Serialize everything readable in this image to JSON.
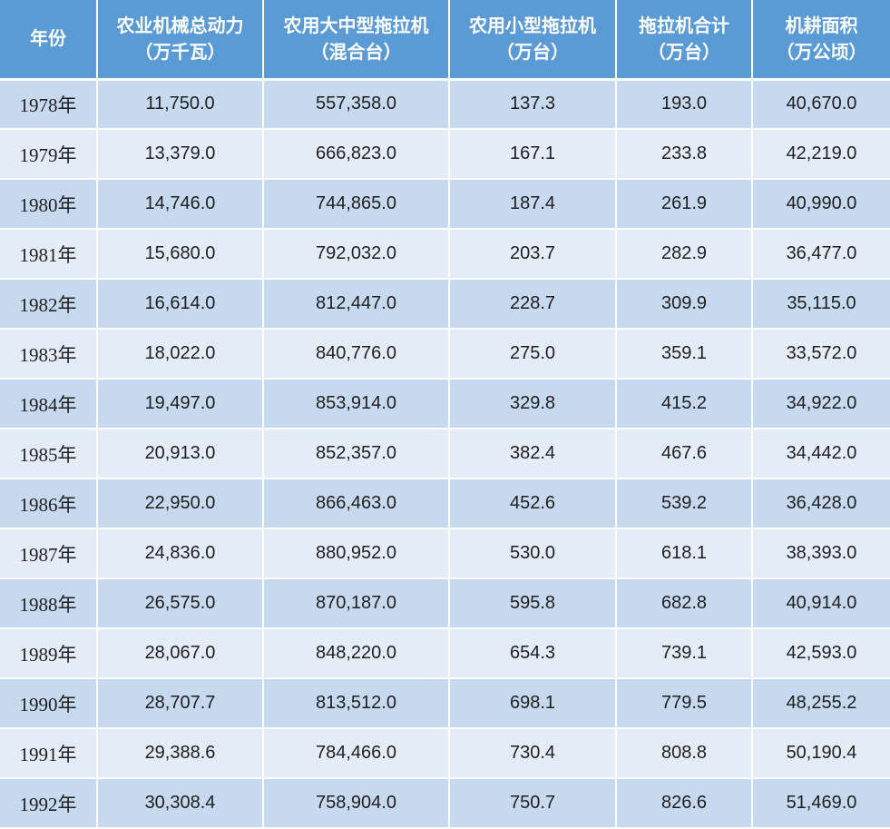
{
  "table": {
    "headers": [
      {
        "line1": "年份",
        "line2": ""
      },
      {
        "line1": "农业机械总动力",
        "line2": "（万千瓦）"
      },
      {
        "line1": "农用大中型拖拉机",
        "line2": "（混合台）"
      },
      {
        "line1": "农用小型拖拉机",
        "line2": "（万台）"
      },
      {
        "line1": "拖拉机合计",
        "line2": "（万台）"
      },
      {
        "line1": "机耕面积",
        "line2": "（万公顷）"
      }
    ],
    "rows": [
      [
        "1978年",
        "11,750.0",
        "557,358.0",
        "137.3",
        "193.0",
        "40,670.0"
      ],
      [
        "1979年",
        "13,379.0",
        "666,823.0",
        "167.1",
        "233.8",
        "42,219.0"
      ],
      [
        "1980年",
        "14,746.0",
        "744,865.0",
        "187.4",
        "261.9",
        "40,990.0"
      ],
      [
        "1981年",
        "15,680.0",
        "792,032.0",
        "203.7",
        "282.9",
        "36,477.0"
      ],
      [
        "1982年",
        "16,614.0",
        "812,447.0",
        "228.7",
        "309.9",
        "35,115.0"
      ],
      [
        "1983年",
        "18,022.0",
        "840,776.0",
        "275.0",
        "359.1",
        "33,572.0"
      ],
      [
        "1984年",
        "19,497.0",
        "853,914.0",
        "329.8",
        "415.2",
        "34,922.0"
      ],
      [
        "1985年",
        "20,913.0",
        "852,357.0",
        "382.4",
        "467.6",
        "34,442.0"
      ],
      [
        "1986年",
        "22,950.0",
        "866,463.0",
        "452.6",
        "539.2",
        "36,428.0"
      ],
      [
        "1987年",
        "24,836.0",
        "880,952.0",
        "530.0",
        "618.1",
        "38,393.0"
      ],
      [
        "1988年",
        "26,575.0",
        "870,187.0",
        "595.8",
        "682.8",
        "40,914.0"
      ],
      [
        "1989年",
        "28,067.0",
        "848,220.0",
        "654.3",
        "739.1",
        "42,593.0"
      ],
      [
        "1990年",
        "28,707.7",
        "813,512.0",
        "698.1",
        "779.5",
        "48,255.2"
      ],
      [
        "1991年",
        "29,388.6",
        "784,466.0",
        "730.4",
        "808.8",
        "50,190.4"
      ],
      [
        "1992年",
        "30,308.4",
        "758,904.0",
        "750.7",
        "826.6",
        "51,469.0"
      ]
    ]
  },
  "colors": {
    "header_bg": "#5b9bd5",
    "header_text": "#ffffff",
    "row_band_dark": "#c7d9ee",
    "row_band_light": "#e4edf7",
    "cell_text": "#1f1f1f"
  }
}
